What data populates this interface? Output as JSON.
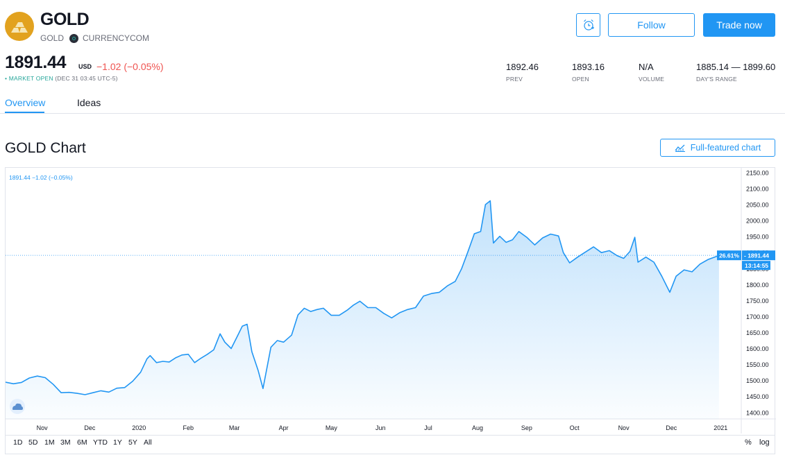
{
  "header": {
    "title": "GOLD",
    "symbol": "GOLD",
    "exchange": "CURRENCYCOM",
    "follow_label": "Follow",
    "trade_label": "Trade now",
    "alert_icon": "alarm-clock-plus-icon",
    "logo_icon": "gold-bars-icon"
  },
  "quote": {
    "price": "1891.44",
    "currency": "USD",
    "change": "−1.02 (−0.05%)",
    "status_label": "MARKET OPEN",
    "status_time": "(DEC 31 03:45 UTC-5)"
  },
  "stats": [
    {
      "value": "1892.46",
      "label": "PREV"
    },
    {
      "value": "1893.16",
      "label": "OPEN"
    },
    {
      "value": "N/A",
      "label": "VOLUME"
    },
    {
      "value": "1885.14 — 1899.60",
      "label": "DAY'S RANGE"
    }
  ],
  "tabs": {
    "overview": "Overview",
    "ideas": "Ideas"
  },
  "chart_section": {
    "heading": "GOLD Chart",
    "fullchart_label": "Full-featured chart",
    "legend_text": "1891.44 −1.02 (−0.05%)",
    "last_price_label": "1891.44",
    "pct_label": "26.61%",
    "countdown_label": "13:14:55",
    "range_buttons": [
      "1D",
      "5D",
      "1M",
      "3M",
      "6M",
      "YTD",
      "1Y",
      "5Y",
      "All"
    ],
    "scale_buttons": [
      "%",
      "log"
    ]
  },
  "colors": {
    "accent": "#2196f3",
    "negative": "#ef5350",
    "positive": "#26a69a",
    "gold": "#e2a21f"
  },
  "chart_data": {
    "type": "area",
    "title": "",
    "xlabel": "",
    "ylabel": "",
    "y_ticks": [
      1400,
      1450,
      1500,
      1550,
      1600,
      1650,
      1700,
      1750,
      1800,
      1850,
      1900,
      1950,
      2000,
      2050,
      2100,
      2150
    ],
    "y_tick_labels": [
      "1400.00",
      "1450.00",
      "1500.00",
      "1550.00",
      "1600.00",
      "1650.00",
      "1700.00",
      "1750.00",
      "1800.00",
      "1850.00",
      "1900.00",
      "1950.00",
      "2000.00",
      "2050.00",
      "2100.00",
      "2150.00"
    ],
    "x_tick_labels": [
      "Nov",
      "Dec",
      "2020",
      "Feb",
      "Mar",
      "Apr",
      "May",
      "Jun",
      "Jul",
      "Aug",
      "Sep",
      "Oct",
      "Nov",
      "Dec",
      "2021"
    ],
    "x_tick_dates": [
      "2019-11-01",
      "2019-12-01",
      "2020-01-01",
      "2020-02-01",
      "2020-03-01",
      "2020-04-01",
      "2020-05-01",
      "2020-06-01",
      "2020-07-01",
      "2020-08-01",
      "2020-09-01",
      "2020-10-01",
      "2020-11-01",
      "2020-12-01",
      "2021-01-01"
    ],
    "ylim": [
      1380,
      2165
    ],
    "xlim": [
      "2019-10-09",
      "2021-01-14"
    ],
    "grid": false,
    "last_value": 1891.44,
    "series": [
      {
        "x": [
          "2019-10-09",
          "2019-10-14",
          "2019-10-19",
          "2019-10-24",
          "2019-10-29",
          "2019-11-03",
          "2019-11-08",
          "2019-11-13",
          "2019-11-18",
          "2019-11-23",
          "2019-11-28",
          "2019-12-03",
          "2019-12-08",
          "2019-12-13",
          "2019-12-18",
          "2019-12-23",
          "2019-12-28",
          "2020-01-02",
          "2020-01-06",
          "2020-01-08",
          "2020-01-12",
          "2020-01-16",
          "2020-01-20",
          "2020-01-24",
          "2020-01-28",
          "2020-02-01",
          "2020-02-05",
          "2020-02-09",
          "2020-02-13",
          "2020-02-17",
          "2020-02-21",
          "2020-02-24",
          "2020-02-28",
          "2020-03-03",
          "2020-03-06",
          "2020-03-09",
          "2020-03-12",
          "2020-03-16",
          "2020-03-19",
          "2020-03-24",
          "2020-03-28",
          "2020-04-01",
          "2020-04-06",
          "2020-04-10",
          "2020-04-14",
          "2020-04-18",
          "2020-04-22",
          "2020-04-26",
          "2020-05-01",
          "2020-05-06",
          "2020-05-11",
          "2020-05-15",
          "2020-05-19",
          "2020-05-24",
          "2020-05-29",
          "2020-06-03",
          "2020-06-08",
          "2020-06-13",
          "2020-06-18",
          "2020-06-23",
          "2020-06-28",
          "2020-07-03",
          "2020-07-08",
          "2020-07-13",
          "2020-07-18",
          "2020-07-22",
          "2020-07-26",
          "2020-07-30",
          "2020-08-03",
          "2020-08-06",
          "2020-08-09",
          "2020-08-11",
          "2020-08-15",
          "2020-08-19",
          "2020-08-23",
          "2020-08-27",
          "2020-09-01",
          "2020-09-06",
          "2020-09-11",
          "2020-09-16",
          "2020-09-21",
          "2020-09-24",
          "2020-09-28",
          "2020-10-03",
          "2020-10-08",
          "2020-10-13",
          "2020-10-18",
          "2020-10-23",
          "2020-10-28",
          "2020-11-01",
          "2020-11-05",
          "2020-11-08",
          "2020-11-10",
          "2020-11-15",
          "2020-11-20",
          "2020-11-25",
          "2020-11-30",
          "2020-12-04",
          "2020-12-09",
          "2020-12-14",
          "2020-12-19",
          "2020-12-24",
          "2020-12-31"
        ],
        "values": [
          1495,
          1490,
          1494,
          1508,
          1514,
          1509,
          1488,
          1462,
          1463,
          1460,
          1456,
          1462,
          1468,
          1464,
          1476,
          1478,
          1498,
          1526,
          1568,
          1578,
          1556,
          1560,
          1558,
          1571,
          1580,
          1582,
          1556,
          1570,
          1582,
          1596,
          1646,
          1620,
          1600,
          1640,
          1670,
          1676,
          1590,
          1531,
          1475,
          1604,
          1625,
          1620,
          1642,
          1705,
          1726,
          1716,
          1722,
          1726,
          1704,
          1704,
          1720,
          1736,
          1748,
          1728,
          1728,
          1710,
          1696,
          1712,
          1722,
          1728,
          1764,
          1772,
          1776,
          1796,
          1810,
          1850,
          1903,
          1959,
          1966,
          2050,
          2062,
          1930,
          1951,
          1932,
          1940,
          1966,
          1948,
          1924,
          1946,
          1958,
          1952,
          1900,
          1868,
          1886,
          1902,
          1918,
          1900,
          1906,
          1890,
          1882,
          1904,
          1948,
          1870,
          1886,
          1870,
          1826,
          1776,
          1826,
          1846,
          1840,
          1864,
          1878,
          1891
        ]
      }
    ]
  }
}
